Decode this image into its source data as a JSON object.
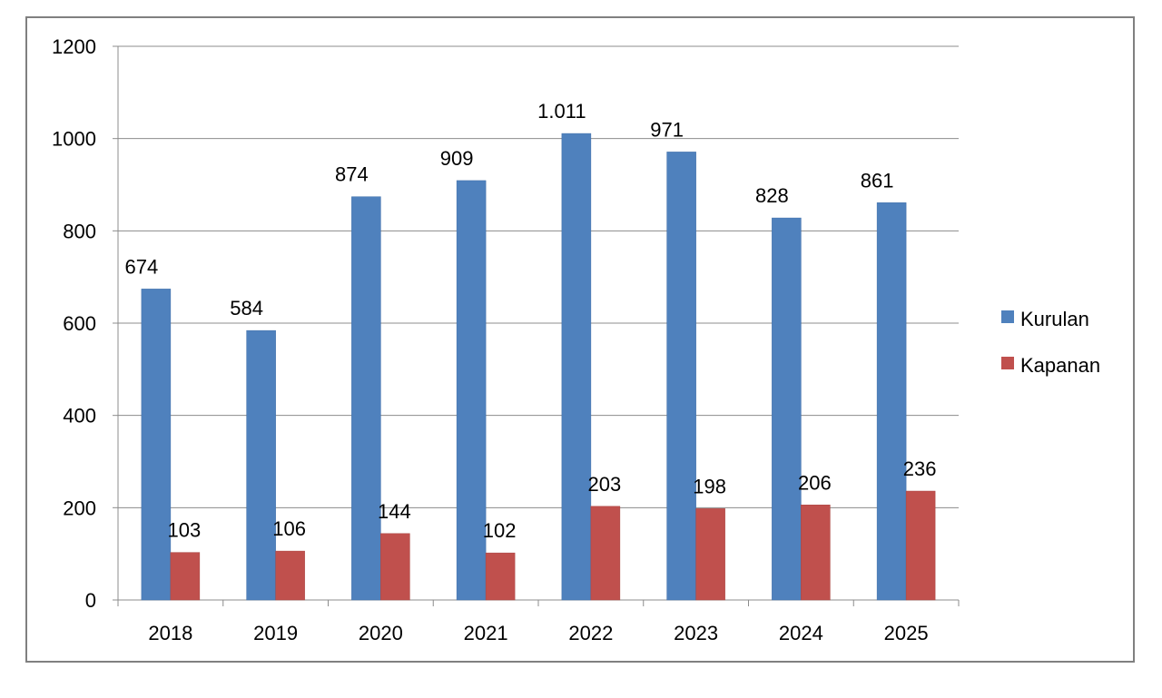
{
  "chart_data": {
    "type": "bar",
    "categories": [
      "2018",
      "2019",
      "2020",
      "2021",
      "2022",
      "2023",
      "2024",
      "2025"
    ],
    "series": [
      {
        "name": "Kurulan",
        "color": "#4f81bd",
        "values": [
          674,
          584,
          874,
          909,
          1011,
          971,
          828,
          861
        ],
        "labels": [
          "674",
          "584",
          "874",
          "909",
          "1.011",
          "971",
          "828",
          "861"
        ]
      },
      {
        "name": "Kapanan",
        "color": "#c0504d",
        "values": [
          103,
          106,
          144,
          102,
          203,
          198,
          206,
          236
        ],
        "labels": [
          "103",
          "106",
          "144",
          "102",
          "203",
          "198",
          "206",
          "236"
        ]
      }
    ],
    "yticks": [
      "0",
      "200",
      "400",
      "600",
      "800",
      "1000",
      "1200"
    ],
    "ylim": [
      0,
      1200
    ],
    "grid": true,
    "legend_position": "right"
  }
}
